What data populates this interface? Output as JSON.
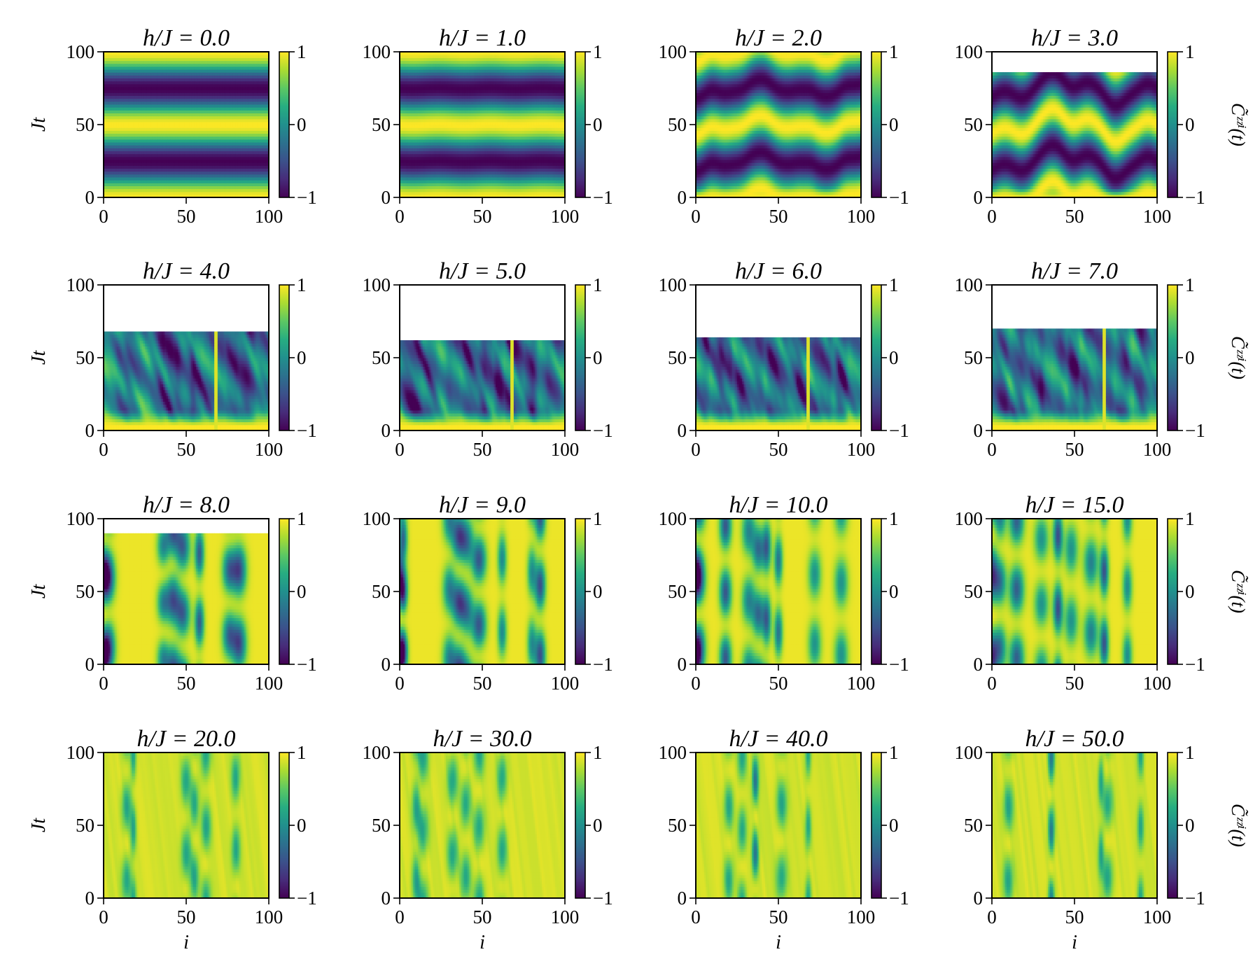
{
  "chart_data": {
    "type": "heatmap",
    "layout": "4x4 grid of heatmap panels with individual colorbars",
    "colormap": "viridis",
    "color_range": [
      -1,
      1
    ],
    "xlabel": "i",
    "ylabel": "Jt",
    "colorbar_label": "C̃ᶻᶻⁱ(t)",
    "colorbar_ticks": [
      "1",
      "0",
      "−1"
    ],
    "xlim": [
      0,
      100
    ],
    "ylim": [
      0,
      100
    ],
    "x_ticks": [
      "0",
      "50",
      "100"
    ],
    "y_ticks": [
      "0",
      "50",
      "100"
    ],
    "panels": [
      {
        "title": "h/J = 0.0",
        "h": "0.0",
        "t_max": 100,
        "pattern": "uniform-oscillation"
      },
      {
        "title": "h/J = 1.0",
        "h": "1.0",
        "t_max": 100,
        "pattern": "uniform-oscillation"
      },
      {
        "title": "h/J = 2.0",
        "h": "2.0",
        "t_max": 100,
        "pattern": "wavy-oscillation"
      },
      {
        "title": "h/J = 3.0",
        "h": "3.0",
        "t_max": 86,
        "pattern": "wavy-oscillation"
      },
      {
        "title": "h/J = 4.0",
        "h": "4.0",
        "t_max": 68,
        "pattern": "patchy-dips"
      },
      {
        "title": "h/J = 5.0",
        "h": "5.0",
        "t_max": 62,
        "pattern": "patchy-dips"
      },
      {
        "title": "h/J = 6.0",
        "h": "6.0",
        "t_max": 64,
        "pattern": "patchy-dips"
      },
      {
        "title": "h/J = 7.0",
        "h": "7.0",
        "t_max": 70,
        "pattern": "patchy-dips"
      },
      {
        "title": "h/J = 8.0",
        "h": "8.0",
        "t_max": 90,
        "pattern": "localized-stripes"
      },
      {
        "title": "h/J = 9.0",
        "h": "9.0",
        "t_max": 100,
        "pattern": "localized-stripes"
      },
      {
        "title": "h/J = 10.0",
        "h": "10.0",
        "t_max": 100,
        "pattern": "localized-stripes"
      },
      {
        "title": "h/J = 15.0",
        "h": "15.0",
        "t_max": 100,
        "pattern": "localized-stripes"
      },
      {
        "title": "h/J = 20.0",
        "h": "20.0",
        "t_max": 100,
        "pattern": "mostly-polarized"
      },
      {
        "title": "h/J = 30.0",
        "h": "30.0",
        "t_max": 100,
        "pattern": "mostly-polarized"
      },
      {
        "title": "h/J = 40.0",
        "h": "40.0",
        "t_max": 100,
        "pattern": "mostly-polarized"
      },
      {
        "title": "h/J = 50.0",
        "h": "50.0",
        "t_max": 100,
        "pattern": "mostly-polarized"
      }
    ]
  }
}
